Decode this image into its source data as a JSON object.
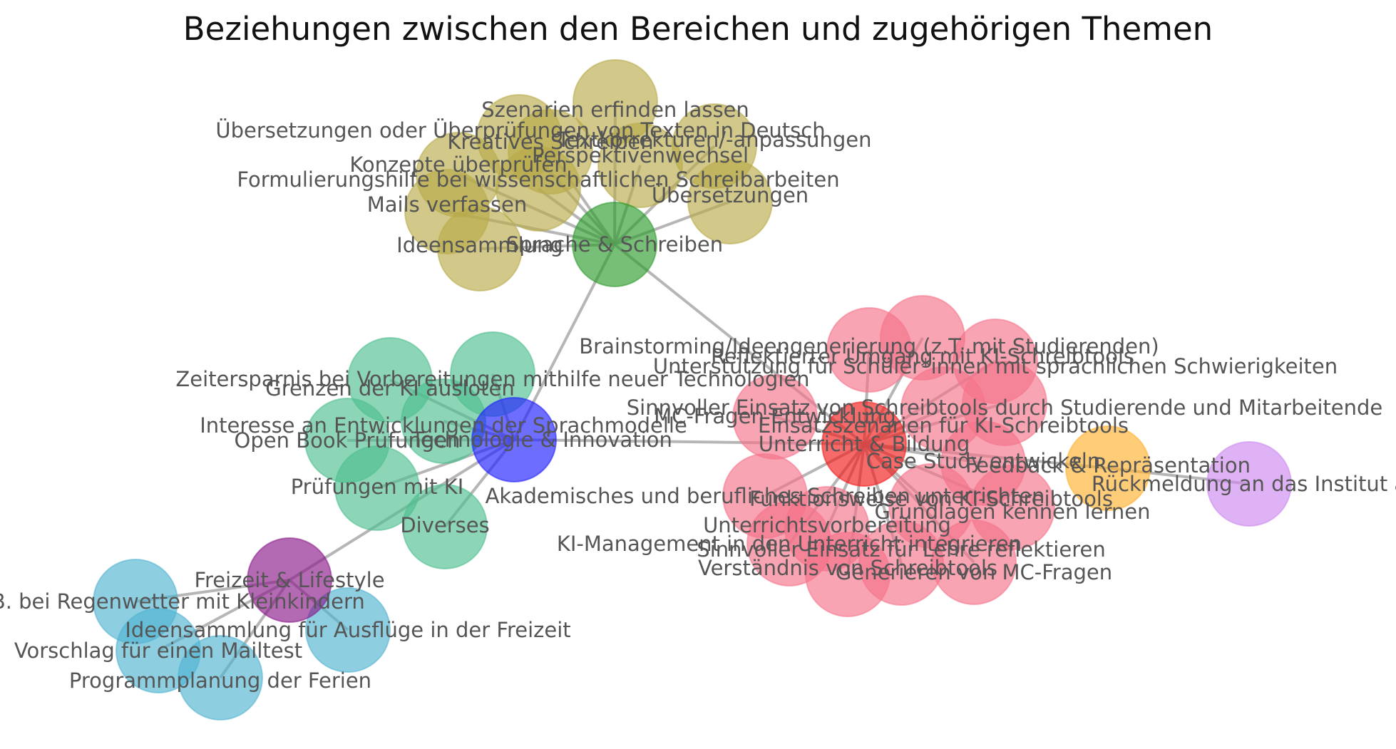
{
  "title": "Beziehungen zwischen den Bereichen und zugehörigen Themen",
  "style": {
    "edge_color": "#9e9e9e",
    "label_color": "#555555"
  },
  "groups": {
    "sprache": {
      "color": "#2e9b2e",
      "child_color": "#b8ab4a"
    },
    "technologie": {
      "color": "#1f1fff",
      "child_color": "#4fbf8f"
    },
    "unterricht": {
      "color": "#f21a1a",
      "child_color": "#f5738a"
    },
    "feedback": {
      "color": "#ffb02e",
      "child_color": "#cc88ee"
    },
    "freizeit": {
      "color": "#8b1a8b",
      "child_color": "#52b3d1"
    }
  },
  "nodes": [
    {
      "id": "sprache",
      "label": "Sprache & Schreiben",
      "group": "sprache",
      "main": true
    },
    {
      "id": "s1",
      "label": "Szenarien erfinden lassen",
      "group": "sprache"
    },
    {
      "id": "s2",
      "label": "Übersetzungen oder Überprüfungen von Texten in Deutsch",
      "group": "sprache"
    },
    {
      "id": "s3",
      "label": "Textkorrekturen/-anpassungen",
      "group": "sprache"
    },
    {
      "id": "s4",
      "label": "Kreatives Schreiben",
      "group": "sprache"
    },
    {
      "id": "s5",
      "label": "Perspektivenwechsel",
      "group": "sprache"
    },
    {
      "id": "s6",
      "label": "Konzepte überprüfen",
      "group": "sprache"
    },
    {
      "id": "s7",
      "label": "Formulierungshilfe bei wissenschaftlichen Schreibarbeiten",
      "group": "sprache"
    },
    {
      "id": "s8",
      "label": "Übersetzungen",
      "group": "sprache"
    },
    {
      "id": "s9",
      "label": "Mails verfassen",
      "group": "sprache"
    },
    {
      "id": "s10",
      "label": "Ideensammlung",
      "group": "sprache"
    },
    {
      "id": "technologie",
      "label": "Technologie & Innovation",
      "group": "technologie",
      "main": true
    },
    {
      "id": "t1",
      "label": "Zeitersparnis bei Vorbereitungen mithilfe neuer Technologien",
      "group": "technologie"
    },
    {
      "id": "t2",
      "label": "Grenzen der KI ausloten",
      "group": "technologie"
    },
    {
      "id": "t3",
      "label": "Interesse an Entwicklungen der Sprachmodelle",
      "group": "technologie"
    },
    {
      "id": "t4",
      "label": "Open Book Prüfungen",
      "group": "technologie"
    },
    {
      "id": "t5",
      "label": "Prüfungen mit KI",
      "group": "technologie"
    },
    {
      "id": "t6",
      "label": "Diverses",
      "group": "technologie"
    },
    {
      "id": "unterricht",
      "label": "Unterricht & Bildung",
      "group": "unterricht",
      "main": true
    },
    {
      "id": "u1",
      "label": "Brainstorming/Ideengenerierung (z.T. mit Studierenden)",
      "group": "unterricht"
    },
    {
      "id": "u2",
      "label": "Reflektierter Umgang mit KI-Schreibtools",
      "group": "unterricht"
    },
    {
      "id": "u3",
      "label": "Unterstützung für Schüler*innen mit sprachlichen Schwierigkeiten",
      "group": "unterricht"
    },
    {
      "id": "u4",
      "label": "Sinnvoller Einsatz von Schreibtools durch Studierende und Mitarbeitende",
      "group": "unterricht"
    },
    {
      "id": "u5",
      "label": "MC-Fragen Entwicklung",
      "group": "unterricht"
    },
    {
      "id": "u6",
      "label": "Einsatzszenarien für KI-Schreibtools",
      "group": "unterricht"
    },
    {
      "id": "u7",
      "label": "Case Study entwickeln",
      "group": "unterricht"
    },
    {
      "id": "u8",
      "label": "Akademisches und berufliches Schreiben unterrichten",
      "group": "unterricht"
    },
    {
      "id": "u9",
      "label": "Funktionsweise von KI-Schreibtools",
      "group": "unterricht"
    },
    {
      "id": "u10",
      "label": "Grundlagen kennen lernen",
      "group": "unterricht"
    },
    {
      "id": "u11",
      "label": "Unterrichtsvorbereitung",
      "group": "unterricht"
    },
    {
      "id": "u12",
      "label": "KI-Management in den Unterricht integrieren",
      "group": "unterricht"
    },
    {
      "id": "u13",
      "label": "Sinnvoller Einsatz für Lehre reflektieren",
      "group": "unterricht"
    },
    {
      "id": "u14",
      "label": "Verständnis von Schreibtools",
      "group": "unterricht"
    },
    {
      "id": "u15",
      "label": "Generieren von MC-Fragen",
      "group": "unterricht"
    },
    {
      "id": "feedback",
      "label": "Feedback & Repräsentation",
      "group": "feedback",
      "main": true
    },
    {
      "id": "f1",
      "label": "Rückmeldung an das Institut a",
      "group": "feedback"
    },
    {
      "id": "freizeit",
      "label": "Freizeit & Lifestyle",
      "group": "freizeit",
      "main": true
    },
    {
      "id": "l1",
      "label": "täten, z.B. bei Regenwetter mit Kleinkindern",
      "group": "freizeit"
    },
    {
      "id": "l2",
      "label": "Ideensammlung für Ausflüge in der Freizeit",
      "group": "freizeit"
    },
    {
      "id": "l3",
      "label": "Vorschlag für einen Mailtest",
      "group": "freizeit"
    },
    {
      "id": "l4",
      "label": "Programmplanung der Ferien",
      "group": "freizeit"
    }
  ],
  "edges": [
    [
      "sprache",
      "technologie"
    ],
    [
      "sprache",
      "unterricht"
    ],
    [
      "technologie",
      "unterricht"
    ],
    [
      "technologie",
      "freizeit"
    ],
    [
      "unterricht",
      "feedback"
    ],
    [
      "sprache",
      "s1"
    ],
    [
      "sprache",
      "s2"
    ],
    [
      "sprache",
      "s3"
    ],
    [
      "sprache",
      "s4"
    ],
    [
      "sprache",
      "s5"
    ],
    [
      "sprache",
      "s6"
    ],
    [
      "sprache",
      "s7"
    ],
    [
      "sprache",
      "s8"
    ],
    [
      "sprache",
      "s9"
    ],
    [
      "sprache",
      "s10"
    ],
    [
      "technologie",
      "t1"
    ],
    [
      "technologie",
      "t2"
    ],
    [
      "technologie",
      "t3"
    ],
    [
      "technologie",
      "t4"
    ],
    [
      "technologie",
      "t5"
    ],
    [
      "technologie",
      "t6"
    ],
    [
      "unterricht",
      "u1"
    ],
    [
      "unterricht",
      "u2"
    ],
    [
      "unterricht",
      "u3"
    ],
    [
      "unterricht",
      "u4"
    ],
    [
      "unterricht",
      "u5"
    ],
    [
      "unterricht",
      "u6"
    ],
    [
      "unterricht",
      "u7"
    ],
    [
      "unterricht",
      "u8"
    ],
    [
      "unterricht",
      "u9"
    ],
    [
      "unterricht",
      "u10"
    ],
    [
      "unterricht",
      "u11"
    ],
    [
      "unterricht",
      "u12"
    ],
    [
      "unterricht",
      "u13"
    ],
    [
      "unterricht",
      "u14"
    ],
    [
      "unterricht",
      "u15"
    ],
    [
      "feedback",
      "f1"
    ],
    [
      "freizeit",
      "l1"
    ],
    [
      "freizeit",
      "l2"
    ],
    [
      "freizeit",
      "l3"
    ],
    [
      "freizeit",
      "l4"
    ]
  ]
}
